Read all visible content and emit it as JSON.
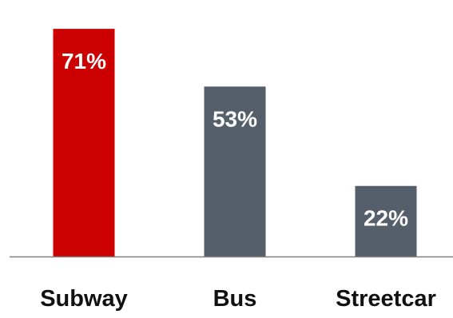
{
  "chart_data": {
    "type": "bar",
    "categories": [
      "Subway",
      "Bus",
      "Streetcar"
    ],
    "values": [
      71,
      53,
      22
    ],
    "data_labels": [
      "71%",
      "53%",
      "22%"
    ],
    "title": "",
    "xlabel": "",
    "ylabel": "",
    "ylim": [
      0,
      80
    ],
    "grid": false,
    "legend": "none",
    "colors": {
      "Subway": "#cc0000",
      "Bus": "#555e6b",
      "Streetcar": "#555e6b"
    },
    "axis_color": "#7f7f7f",
    "label_color": "#ffffff",
    "category_label_color": "#111111"
  }
}
